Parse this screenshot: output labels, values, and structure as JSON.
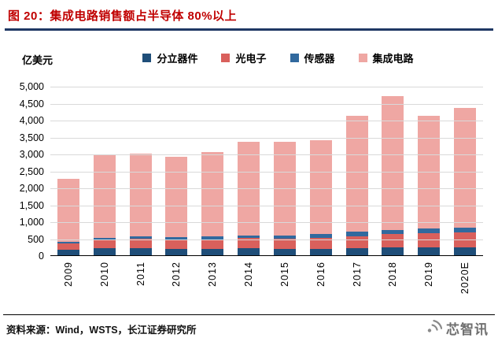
{
  "header": {
    "title": "图 20：集成电路销售额占半导体 80%以上"
  },
  "chart_data": {
    "type": "bar",
    "stacked": true,
    "title": "集成电路销售额占半导体 80%以上",
    "unit_label": "亿美元",
    "xlabel": "",
    "ylabel": "亿美元",
    "ylim": [
      0,
      5000
    ],
    "grid": true,
    "legend_position": "top",
    "y_ticks": [
      "5,000",
      "4,500",
      "4,000",
      "3,500",
      "3,000",
      "2,500",
      "2,000",
      "1,500",
      "1,000",
      "500",
      "0"
    ],
    "y_tick_values": [
      5000,
      4500,
      4000,
      3500,
      3000,
      2500,
      2000,
      1500,
      1000,
      500,
      0
    ],
    "categories": [
      "2009",
      "2010",
      "2011",
      "2012",
      "2013",
      "2014",
      "2015",
      "2016",
      "2017",
      "2018",
      "2019",
      "2020E"
    ],
    "series": [
      {
        "name": "分立器件",
        "color": "#1f4e79",
        "values": [
          156,
          203,
          214,
          191,
          189,
          202,
          193,
          194,
          216,
          241,
          239,
          240
        ]
      },
      {
        "name": "光电子",
        "color": "#d9605c",
        "values": [
          197,
          247,
          264,
          274,
          284,
          299,
          305,
          322,
          348,
          380,
          416,
          430
        ]
      },
      {
        "name": "传感器",
        "color": "#31699e",
        "values": [
          51,
          70,
          77,
          79,
          80,
          85,
          88,
          107,
          126,
          134,
          135,
          150
        ]
      },
      {
        "name": "集成电路",
        "color": "#efa7a3",
        "values": [
          1859,
          2463,
          2440,
          2371,
          2503,
          2773,
          2766,
          2766,
          3432,
          3933,
          3334,
          3530
        ]
      }
    ]
  },
  "footer": {
    "source": "资料来源：Wind，WSTS，长江证券研究所",
    "watermark": "芯智讯"
  }
}
